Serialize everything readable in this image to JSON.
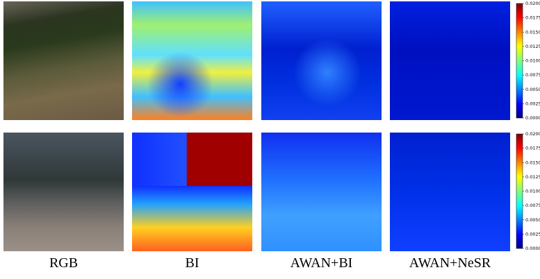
{
  "figure": {
    "columns": [
      "RGB",
      "BI",
      "AWAN+BI",
      "AWAN+NeSR"
    ],
    "colorbars": [
      {
        "lim": [
          0,
          0.02
        ],
        "ticks": [
          {
            "value": 0,
            "label": "0.0000"
          },
          {
            "value": 0.0025,
            "label": "0.0025"
          },
          {
            "value": 0.005,
            "label": "0.0050"
          },
          {
            "value": 0.0075,
            "label": "0.0075"
          },
          {
            "value": 0.01,
            "label": "0.0100"
          },
          {
            "value": 0.0125,
            "label": "0.0125"
          },
          {
            "value": 0.015,
            "label": "0.0150"
          },
          {
            "value": 0.0175,
            "label": "0.0175"
          },
          {
            "value": 0.02,
            "label": "0.0200"
          }
        ]
      },
      {
        "lim": [
          0,
          0.02
        ],
        "ticks": [
          {
            "value": 0,
            "label": "0.0000"
          },
          {
            "value": 0.0025,
            "label": "0.0025"
          },
          {
            "value": 0.005,
            "label": "0.0050"
          },
          {
            "value": 0.0075,
            "label": "0.0075"
          },
          {
            "value": 0.01,
            "label": "0.0100"
          },
          {
            "value": 0.0125,
            "label": "0.0125"
          },
          {
            "value": 0.015,
            "label": "0.0150"
          },
          {
            "value": 0.0175,
            "label": "0.0175"
          },
          {
            "value": 0.02,
            "label": "0.0200"
          }
        ]
      }
    ]
  }
}
